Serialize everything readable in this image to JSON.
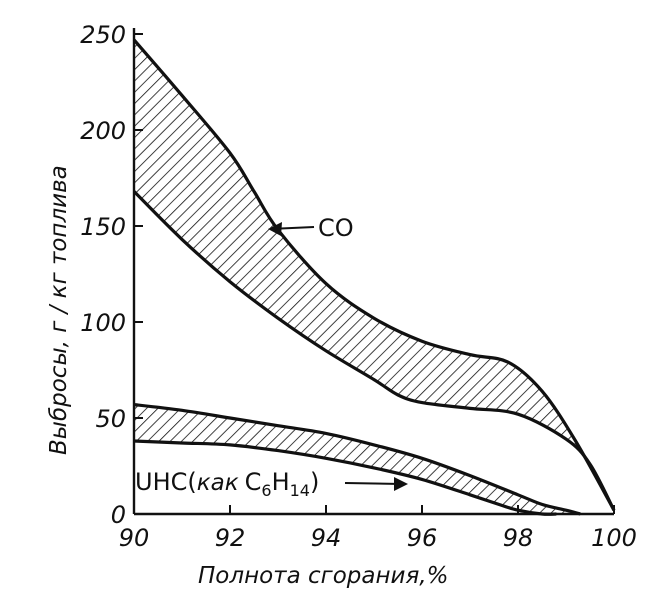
{
  "chart_data": {
    "type": "area",
    "xlabel": "Полнота сгорания,%",
    "ylabel": "Выбросы, г / кг топлива",
    "xlim": [
      90,
      100
    ],
    "ylim": [
      0,
      250
    ],
    "x_ticks": [
      "90",
      "92",
      "94",
      "96",
      "98",
      "100"
    ],
    "y_ticks": [
      "0",
      "50",
      "100",
      "150",
      "200",
      "250"
    ],
    "grid": false,
    "series": [
      {
        "name": "CO",
        "label": "CO",
        "upper": {
          "x": [
            90,
            91,
            92,
            92.5,
            93,
            94,
            95,
            96,
            97,
            97.8,
            98.5,
            99.2,
            100
          ],
          "y": [
            247,
            218,
            188,
            168,
            148,
            120,
            102,
            90,
            83,
            79,
            64,
            38,
            2
          ]
        },
        "lower": {
          "x": [
            90,
            91,
            92,
            93,
            94,
            95,
            95.5,
            96,
            97,
            98,
            99,
            99.5,
            100
          ],
          "y": [
            168,
            143,
            121,
            102,
            85,
            70,
            62,
            58,
            55,
            52,
            39,
            26,
            2
          ]
        }
      },
      {
        "name": "UHC (как C6H14)",
        "label_parts": [
          "UHC(",
          "как",
          "C",
          "6",
          "H",
          "14",
          ")"
        ],
        "upper": {
          "x": [
            90,
            91,
            92,
            93,
            94,
            95,
            96,
            97,
            98,
            98.5,
            99,
            99.3
          ],
          "y": [
            57,
            54,
            50,
            46,
            42,
            36,
            29,
            20,
            10,
            5,
            2,
            0
          ]
        },
        "lower": {
          "x": [
            90,
            91,
            92,
            93,
            94,
            95,
            96,
            97,
            97.6,
            98,
            98.5,
            98.8
          ],
          "y": [
            38,
            37,
            36,
            33,
            29,
            24,
            18,
            10,
            5,
            2,
            0,
            0
          ]
        }
      }
    ]
  }
}
